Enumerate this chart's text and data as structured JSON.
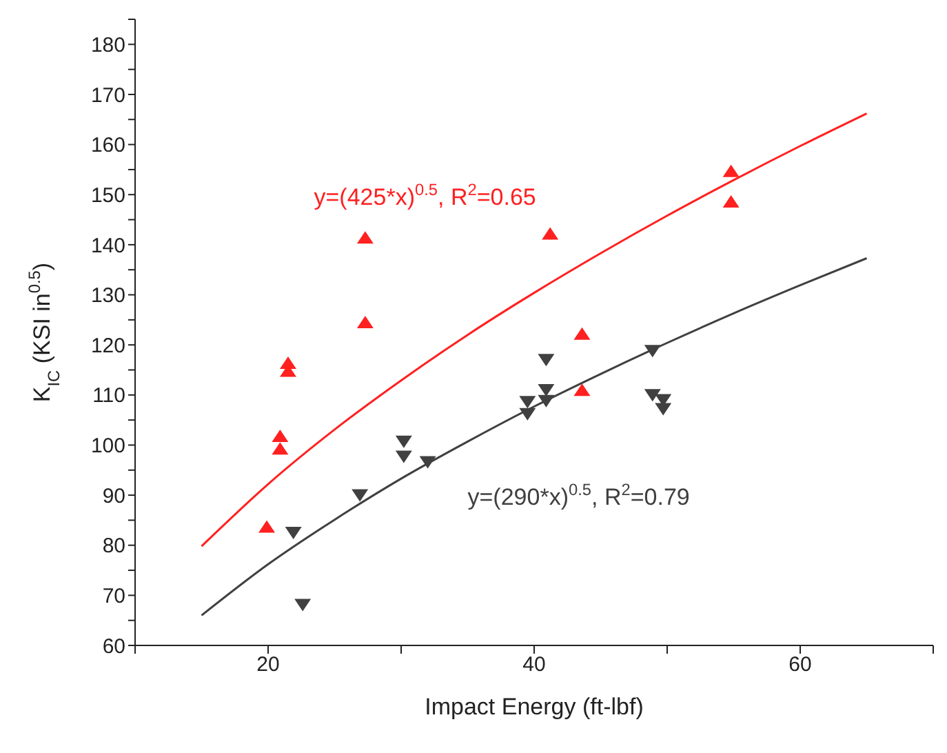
{
  "chart_data": {
    "type": "scatter",
    "xlabel": "Impact Energy (ft-lbf)",
    "ylabel": "K$_{IC}$ (KSI in$^{0.5}$)",
    "xlim": [
      10,
      70
    ],
    "xticks": [
      {
        "value": 10,
        "label": null
      },
      20,
      {
        "value": 30,
        "label": null
      },
      40,
      {
        "value": 50,
        "label": null
      },
      60,
      {
        "value": 70,
        "label": null
      }
    ],
    "ylim": [
      60,
      185
    ],
    "yticks": [
      60,
      {
        "value": 65,
        "label": null
      },
      70,
      {
        "value": 75,
        "label": null
      },
      80,
      {
        "value": 85,
        "label": null
      },
      90,
      {
        "value": 95,
        "label": null
      },
      100,
      {
        "value": 105,
        "label": null
      },
      110,
      {
        "value": 115,
        "label": null
      },
      120,
      {
        "value": 125,
        "label": null
      },
      130,
      {
        "value": 135,
        "label": null
      },
      140,
      {
        "value": 145,
        "label": null
      },
      150,
      {
        "value": 155,
        "label": null
      },
      160,
      {
        "value": 165,
        "label": null
      },
      170,
      {
        "value": 175,
        "label": null
      },
      180,
      {
        "value": 185,
        "label": null
      }
    ],
    "grid": false,
    "legend": false,
    "series": [
      {
        "color": "#ff2020",
        "marker": "triangle",
        "x": [
          54.8,
          54.8,
          27.3,
          41.2,
          27.3,
          43.6,
          21.5,
          21.5,
          20.9,
          20.9,
          19.9,
          43.6
        ],
        "values": [
          154.5,
          148.4,
          141.2,
          142,
          124.3,
          122,
          116.2,
          114.6,
          101.6,
          99.1,
          83.5,
          110.8
        ]
      },
      {
        "color": "#404040",
        "marker": "triangle-down",
        "x": [
          22.6,
          21.9,
          26.9,
          30.2,
          30.2,
          32.0,
          39.5,
          39.5,
          40.9,
          40.9,
          40.9,
          48.9,
          48.9,
          49.7,
          49.7
        ],
        "values": [
          68.3,
          82.7,
          90.2,
          100.9,
          97.9,
          96.8,
          108.8,
          106.4,
          117.2,
          111.2,
          109,
          119,
          110.2,
          109.2,
          107.4
        ]
      },
      {
        "type": "line",
        "name": "y=(425*x)$^{0.5}$, R$^{2}$=0.65",
        "color": "#ff2020",
        "marker": "none",
        "x": [
          15,
          20,
          25,
          30,
          35,
          40,
          45,
          50,
          55,
          60,
          65
        ],
        "values": [
          79.8,
          92.2,
          103.1,
          112.9,
          122.0,
          130.4,
          138.3,
          145.8,
          152.9,
          159.7,
          166.2
        ]
      },
      {
        "type": "line",
        "name": "y=(290*x)$^{0.5}$, R$^{2}$=0.79",
        "color": "#404040",
        "marker": "none",
        "x": [
          15,
          20,
          25,
          30,
          35,
          40,
          45,
          50,
          55,
          60,
          65
        ],
        "values": [
          66.0,
          76.2,
          85.1,
          93.3,
          100.7,
          107.7,
          114.2,
          120.4,
          126.3,
          131.9,
          137.3
        ]
      }
    ]
  }
}
